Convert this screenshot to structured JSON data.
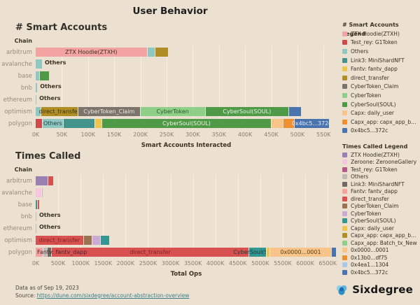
{
  "page": {
    "title": "User Behavior",
    "background": "#ece1d0"
  },
  "footer": {
    "data_as_of": "Data as of  Sep 19, 2023",
    "source_prefix": "Source: ",
    "source_link": "https://dune.com/sixdegree/account-abstraction-overview"
  },
  "logo": {
    "text": "Sixdegree",
    "icon_colors": [
      "#8ecdeb",
      "#5fb4e0",
      "#2d8fc6",
      "#1c6fae"
    ]
  },
  "chart_data": [
    {
      "id": "smart-accounts",
      "type": "bar",
      "orientation": "horizontal-stacked",
      "heading": "# Smart Accounts",
      "ylabel": "Chain",
      "xlabel": "Smart Accounts Interacted",
      "unit": "K",
      "x_max": 575,
      "x_tick_values": [
        0,
        50,
        100,
        150,
        200,
        250,
        300,
        350,
        400,
        450,
        500,
        550
      ],
      "x_ticks": [
        "0K",
        "50K",
        "100K",
        "150K",
        "200K",
        "250K",
        "300K",
        "350K",
        "400K",
        "450K",
        "500K",
        "550K"
      ],
      "legend_title": "# Smart Accounts Legend",
      "legend_position": "right",
      "grid": true,
      "legend": [
        {
          "label": "ZTX Hoodie(ZTXH)",
          "color": "#f4a3a3"
        },
        {
          "label": "Test_rey: G1Token",
          "color": "#cf4a4a"
        },
        {
          "label": "Others",
          "color": "#8fc7c2"
        },
        {
          "label": "Link3: MiniShardNFT",
          "color": "#42948d"
        },
        {
          "label": "Fantv: fantv_dapp",
          "color": "#ecc64f"
        },
        {
          "label": "direct_transfer",
          "color": "#b08e26"
        },
        {
          "label": "CyberToken_Claim",
          "color": "#7a746c"
        },
        {
          "label": "CyberToken",
          "color": "#8fd089"
        },
        {
          "label": "CyberSoul(SOUL)",
          "color": "#4e9a47"
        },
        {
          "label": "Capx: daily_user",
          "color": "#f9c489"
        },
        {
          "label": "Capx_app: capx_app_batc...",
          "color": "#ee8f31"
        },
        {
          "label": "0x4bc5...372c",
          "color": "#4a74ad"
        }
      ],
      "rows": [
        {
          "chain": "arbitrum",
          "segments": [
            {
              "name": "ZTX Hoodie(ZTXH)",
              "value": 212,
              "label": "ZTX Hoodie(ZTXH)",
              "label_color": "#3b3223"
            },
            {
              "name": "Others",
              "value": 16
            },
            {
              "name": "direct_transfer",
              "value": 25
            }
          ]
        },
        {
          "chain": "avalanche",
          "outside_label": "Others",
          "segments": [
            {
              "name": "Others",
              "value": 12
            }
          ]
        },
        {
          "chain": "base",
          "segments": [
            {
              "name": "Others",
              "value": 7
            },
            {
              "name": "CyberSoul(SOUL)",
              "value": 19
            }
          ]
        },
        {
          "chain": "bnb",
          "outside_label": "Others",
          "segments": [
            {
              "name": "Others",
              "value": 3
            }
          ]
        },
        {
          "chain": "ethereum",
          "outside_label": "Others",
          "segments": [
            {
              "name": "Others",
              "value": 1.5
            }
          ]
        },
        {
          "chain": "optimism",
          "segments": [
            {
              "name": "Others",
              "value": 9
            },
            {
              "name": "direct_transfer",
              "value": 71,
              "label": "direct_transfer",
              "label_color": "#3d3310"
            },
            {
              "name": "CyberToken_Claim",
              "value": 119,
              "label": "CyberToken_Claim",
              "label_color": "#efe9e0"
            },
            {
              "name": "CyberToken",
              "value": 124,
              "label": "CyberToken",
              "label_color": "#27582a"
            },
            {
              "name": "CyberSoul(SOUL)",
              "value": 160,
              "label": "CyberSoul(SOUL)",
              "label_color": "#eef3e6"
            },
            {
              "name": "0x4bc5...372c",
              "value": 24
            }
          ]
        },
        {
          "chain": "polygon",
          "segments": [
            {
              "name": "Test_rey: G1Token",
              "value": 12
            },
            {
              "name": "Others",
              "value": 40,
              "label": "Others",
              "label_color": "#24403d"
            },
            {
              "name": "Link3: MiniShardNFT",
              "value": 61
            },
            {
              "name": "Fantv: fantv_dapp",
              "value": 13
            },
            {
              "name": "CyberSoul(SOUL)",
              "value": 323,
              "label": "CyberSoul(SOUL)",
              "label_color": "#eef3e6"
            },
            {
              "name": "Capx: daily_user",
              "value": 23
            },
            {
              "name": "Capx_app: capx_app_batc...",
              "value": 21
            },
            {
              "name": "0x4bc5...372c",
              "value": 67,
              "label": "0x4bc5...372c",
              "label_color": "#e8edf5"
            }
          ]
        }
      ]
    },
    {
      "id": "times-called",
      "type": "bar",
      "orientation": "horizontal-stacked",
      "heading": "Times Called",
      "ylabel": "Chain",
      "xlabel": "Total Ops",
      "unit": "K",
      "x_max": 6700,
      "x_tick_values": [
        0,
        500,
        1000,
        1500,
        2000,
        2500,
        3000,
        3500,
        4000,
        4500,
        5000,
        5500,
        6000,
        6500
      ],
      "x_ticks": [
        "0K",
        "500K",
        "1000K",
        "1500K",
        "2000K",
        "2500K",
        "3000K",
        "3500K",
        "4000K",
        "4500K",
        "5000K",
        "5500K",
        "6000K",
        "6500K"
      ],
      "legend_title": "Times Called Legend",
      "legend_position": "right",
      "grid": true,
      "legend": [
        {
          "label": "ZTX Hoodie(ZTXH)",
          "color": "#9a7fb3"
        },
        {
          "label": "Zeroone: ZerooneGallery",
          "color": "#f6c6e0"
        },
        {
          "label": "Test_rey: G1Token",
          "color": "#b4598c"
        },
        {
          "label": "Others",
          "color": "#bfbab2"
        },
        {
          "label": "Link3: MiniShardNFT",
          "color": "#6f6a63"
        },
        {
          "label": "Fantv: fantv_dapp",
          "color": "#f4a39e"
        },
        {
          "label": "direct_transfer",
          "color": "#d8504f"
        },
        {
          "label": "CyberToken_Claim",
          "color": "#9c7350"
        },
        {
          "label": "CyberToken",
          "color": "#cbaad6"
        },
        {
          "label": "CyberSoul(SOUL)",
          "color": "#339690"
        },
        {
          "label": "Capx: daily_user",
          "color": "#ecc64f"
        },
        {
          "label": "Capx_app: capx_app_batc...",
          "color": "#b08e26"
        },
        {
          "label": "Capx_app: Batch_tx_New",
          "color": "#8fd089"
        },
        {
          "label": "0x0000...0001",
          "color": "#f9c489"
        },
        {
          "label": "0x13b0...df75",
          "color": "#ee8f31"
        },
        {
          "label": "0x4ea1...1304",
          "color": "#a9c9e8"
        },
        {
          "label": "0x4bc5...372c",
          "color": "#4a74ad"
        }
      ],
      "rows": [
        {
          "chain": "arbitrum",
          "segments": [
            {
              "name": "ZTX Hoodie(ZTXH)",
              "value": 265
            },
            {
              "name": "direct_transfer",
              "value": 125
            }
          ]
        },
        {
          "chain": "avalanche",
          "segments": [
            {
              "name": "Zeroone: ZerooneGallery",
              "value": 130
            },
            {
              "name": "Others",
              "value": 30
            }
          ]
        },
        {
          "chain": "base",
          "segments": [
            {
              "name": "CyberSoul(SOUL)",
              "value": 30
            },
            {
              "name": "direct_transfer",
              "value": 45
            }
          ]
        },
        {
          "chain": "bnb",
          "outside_label": "Others",
          "segments": [
            {
              "name": "Others",
              "value": 10
            }
          ]
        },
        {
          "chain": "ethereum",
          "outside_label": "Others",
          "segments": [
            {
              "name": "Others",
              "value": 8
            }
          ]
        },
        {
          "chain": "optimism",
          "segments": [
            {
              "name": "direct_transfer",
              "value": 1055,
              "label": "direct_transfer",
              "label_color": "#7c2622"
            },
            {
              "name": "CyberToken_Claim",
              "value": 190
            },
            {
              "name": "CyberToken",
              "value": 190
            },
            {
              "name": "CyberSoul(SOUL)",
              "value": 205
            }
          ]
        },
        {
          "chain": "polygon",
          "segments": [
            {
              "name": "Fantv: fantv_dapp",
              "value": 160,
              "label": "Fantv: fantv_dapp",
              "label_color": "#4a2430",
              "label_align": "left"
            },
            {
              "name": "Others",
              "value": 95
            },
            {
              "name": "Link3: MiniShardNFT",
              "value": 95
            },
            {
              "name": "direct_transfer",
              "value": 4380,
              "label": "direct_transfer",
              "label_color": "#7c2622"
            },
            {
              "name": "CyberSoul(SOUL)",
              "value": 395,
              "label": "CyberSoul(SOUL)",
              "label_color": "#1d3b38"
            },
            {
              "name": "Capx: daily_user",
              "value": 80
            },
            {
              "name": "0x0000...0001",
              "value": 1370,
              "label": "0x0000...0001",
              "label_color": "#584018"
            },
            {
              "name": "0x4bc5...372c",
              "value": 115
            }
          ]
        }
      ]
    }
  ]
}
